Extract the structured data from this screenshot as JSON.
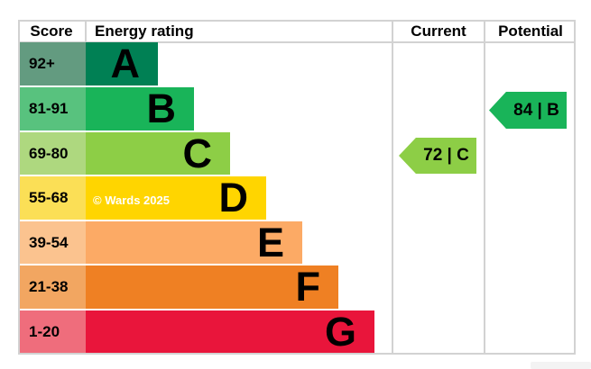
{
  "header": {
    "score": "Score",
    "energy_rating": "Energy rating",
    "current": "Current",
    "potential": "Potential"
  },
  "watermark": "© Wards 2025",
  "chart_data": {
    "type": "bar",
    "title": "Energy rating",
    "columns": [
      "Score",
      "Energy rating",
      "Current",
      "Potential"
    ],
    "bands": [
      {
        "grade": "A",
        "score_range": "92+",
        "bar_color": "#008054",
        "score_cell_color": "#639b80",
        "relative_length": 1
      },
      {
        "grade": "B",
        "score_range": "81-91",
        "bar_color": "#19b459",
        "score_cell_color": "#58c27e",
        "relative_length": 2
      },
      {
        "grade": "C",
        "score_range": "69-80",
        "bar_color": "#8dce46",
        "score_cell_color": "#aed87f",
        "relative_length": 3
      },
      {
        "grade": "D",
        "score_range": "55-68",
        "bar_color": "#ffd500",
        "score_cell_color": "#fbdf56",
        "relative_length": 4
      },
      {
        "grade": "E",
        "score_range": "39-54",
        "bar_color": "#fcaa65",
        "score_cell_color": "#fbc38f",
        "relative_length": 5
      },
      {
        "grade": "F",
        "score_range": "21-38",
        "bar_color": "#ef8023",
        "score_cell_color": "#f2a661",
        "relative_length": 6
      },
      {
        "grade": "G",
        "score_range": "1-20",
        "bar_color": "#e9153b",
        "score_cell_color": "#ef6d7c",
        "relative_length": 7
      }
    ],
    "current": {
      "label": "72 | C",
      "score": 72,
      "grade": "C",
      "color": "#8dce46"
    },
    "potential": {
      "label": "84 | B",
      "score": 84,
      "grade": "B",
      "color": "#19b459"
    }
  }
}
